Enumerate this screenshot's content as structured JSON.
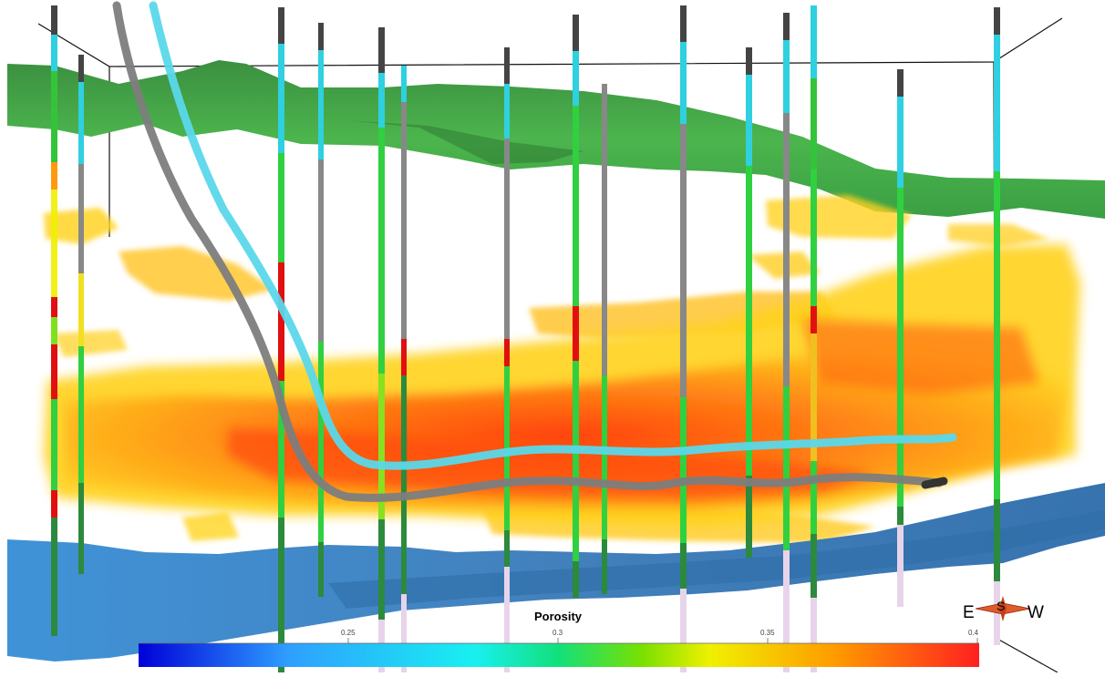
{
  "legend": {
    "title": "Porosity",
    "ticks": [
      "0.25",
      "0.3",
      "0.35",
      "0.4"
    ],
    "colors": [
      "#0000d8",
      "#2fa0ff",
      "#18f0f0",
      "#12e07a",
      "#7ae000",
      "#f0f000",
      "#ff9a00",
      "#ff2020"
    ]
  },
  "compass": {
    "left": "E",
    "up": "S",
    "right": "W"
  },
  "colors": {
    "top_horizon": "#3fa848",
    "base_horizon": "#3f82c8",
    "porosity_high": "#ff4010",
    "porosity_low": "#ffd21e",
    "well_pink": "#e7d4ea",
    "well_cyan": "#5ad8ea",
    "well_gray": "#888888"
  }
}
